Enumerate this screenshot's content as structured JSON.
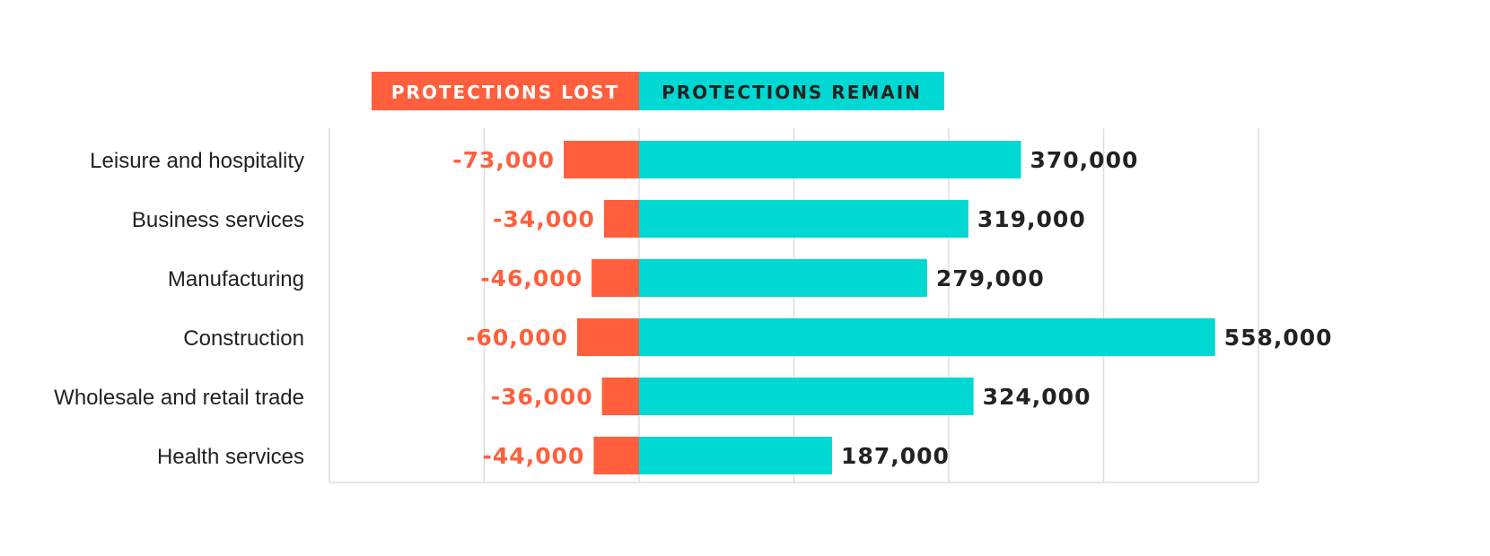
{
  "colors": {
    "lost": "#ff5f3c",
    "remain": "#00d8d3",
    "remain_text": "#222222",
    "grid": "#dddddd"
  },
  "chart_data": {
    "type": "bar",
    "orientation": "horizontal-diverging",
    "legend": [
      "PROTECTIONS LOST",
      "PROTECTIONS REMAIN"
    ],
    "legend_placement": "top",
    "categories": [
      "Leisure and hospitality",
      "Business services",
      "Manufacturing",
      "Construction",
      "Wholesale and retail trade",
      "Health services"
    ],
    "series": [
      {
        "name": "PROTECTIONS LOST",
        "values": [
          -73000,
          -34000,
          -46000,
          -60000,
          -36000,
          -44000
        ],
        "labels": [
          "-73,000",
          "-34,000",
          "-46,000",
          "-60,000",
          "-36,000",
          "-44,000"
        ]
      },
      {
        "name": "PROTECTIONS REMAIN",
        "values": [
          370000,
          319000,
          279000,
          558000,
          324000,
          187000
        ],
        "labels": [
          "370,000",
          "319,000",
          "279,000",
          "558,000",
          "324,000",
          "187,000"
        ]
      }
    ],
    "xlim": [
      -300000,
      600000
    ],
    "grid_step": 150000,
    "grid": true
  }
}
